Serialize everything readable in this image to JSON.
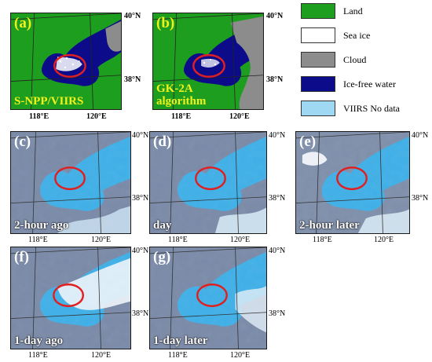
{
  "colors": {
    "land": "#1e9e1e",
    "sea_ice": "#ffffff",
    "cloud": "#8c8c8c",
    "ice_free_water": "#0c0c8a",
    "viirs_no_data": "#9ed8f2",
    "highlight_circle": "#e02020"
  },
  "legend": [
    {
      "label": "Land",
      "color_key": "land"
    },
    {
      "label": "Sea ice",
      "color_key": "sea_ice"
    },
    {
      "label": "Cloud",
      "color_key": "cloud"
    },
    {
      "label": "Ice-free water",
      "color_key": "ice_free_water"
    },
    {
      "label": "VIIRS No data",
      "color_key": "viirs_no_data"
    }
  ],
  "lat_labels": {
    "north": "40°N",
    "mid": "38°N"
  },
  "lon_labels": {
    "west": "118°E",
    "east": "120°E"
  },
  "panels": {
    "a": {
      "label": "(a)",
      "caption": "S-NPP/VIIRS"
    },
    "b": {
      "label": "(b)",
      "caption": "GK-2A\nalgorithm"
    },
    "c": {
      "label": "(c)",
      "caption": "2-hour ago"
    },
    "d": {
      "label": "(d)",
      "caption": "day"
    },
    "e": {
      "label": "(e)",
      "caption": "2-hour later"
    },
    "f": {
      "label": "(f)",
      "caption": "1-day ago"
    },
    "g": {
      "label": "(g)",
      "caption": "1-day later"
    }
  }
}
